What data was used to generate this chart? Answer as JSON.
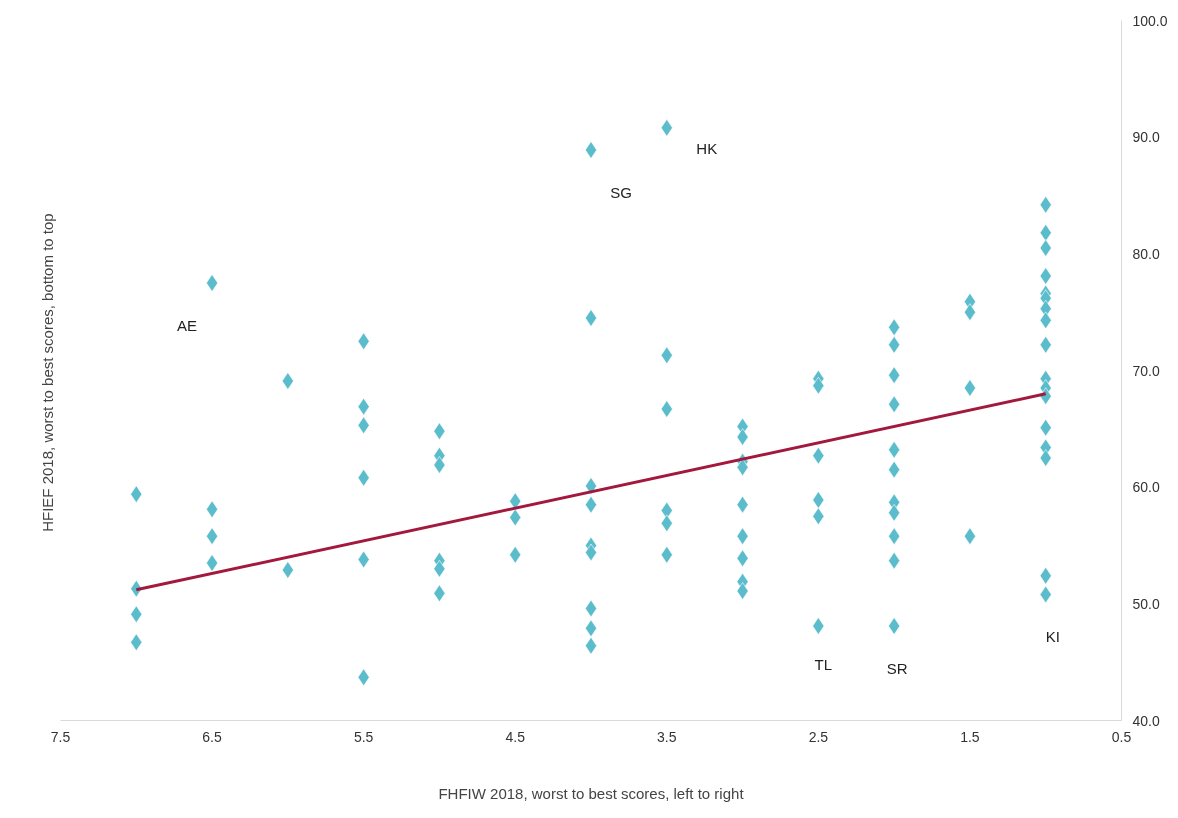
{
  "chart_data": {
    "type": "scatter",
    "xlabel": "FHFIW 2018, worst to best scores, left to right",
    "ylabel": "HFIEF 2018, worst to best scores, bottom  to top",
    "xlim": [
      7.5,
      0.5
    ],
    "xticks": [
      7.5,
      6.5,
      5.5,
      4.5,
      3.5,
      2.5,
      1.5,
      0.5
    ],
    "ylim": [
      40,
      100
    ],
    "yticks": [
      {
        "value": 40,
        "label": "40.0"
      },
      {
        "value": 50,
        "label": "50.0"
      },
      {
        "value": 60,
        "label": "60.0"
      },
      {
        "value": 70,
        "label": "70.0"
      },
      {
        "value": 80,
        "label": "80.0"
      },
      {
        "value": 90,
        "label": "90.0"
      },
      {
        "value": 100,
        "label": "100.0"
      }
    ],
    "grid": false,
    "series": [
      {
        "color": "#5bbccc",
        "marker": "diamond",
        "x": [
          7,
          7,
          7,
          7,
          6.5,
          6.5,
          6.5,
          6.5,
          6,
          6,
          5.5,
          5.5,
          5.5,
          5.5,
          5.5,
          5.5,
          5,
          5,
          5,
          5,
          5,
          5,
          4.5,
          4.5,
          4.5,
          4,
          4,
          4,
          4,
          4,
          4,
          4,
          4,
          4,
          3.5,
          3.5,
          3.5,
          3.5,
          3.5,
          3.5,
          3,
          3,
          3,
          3,
          3,
          3,
          3,
          3,
          3,
          2.5,
          2.5,
          2.5,
          2.5,
          2.5,
          2.5,
          2,
          2,
          2,
          2,
          2,
          2,
          2,
          2,
          2,
          2,
          2,
          1.5,
          1.5,
          1.5,
          1.5,
          1,
          1,
          1,
          1,
          1,
          1,
          1,
          1,
          1,
          1,
          1,
          1,
          1,
          1,
          1,
          1,
          1
        ],
        "values": [
          59.4,
          51.3,
          49.1,
          46.7,
          77.5,
          58.1,
          55.8,
          53.5,
          69.1,
          52.9,
          72.5,
          66.9,
          65.3,
          60.8,
          53.8,
          43.7,
          64.8,
          62.7,
          61.9,
          53.7,
          53.0,
          50.9,
          58.8,
          57.4,
          54.2,
          88.9,
          74.5,
          60.1,
          58.5,
          55.0,
          54.4,
          49.6,
          47.9,
          46.4,
          90.8,
          71.3,
          66.7,
          58.0,
          56.9,
          54.2,
          65.2,
          64.3,
          62.2,
          61.7,
          58.5,
          55.8,
          53.9,
          51.9,
          51.1,
          69.3,
          68.7,
          62.7,
          58.9,
          57.5,
          48.1,
          73.7,
          72.2,
          69.6,
          67.1,
          63.2,
          61.5,
          58.7,
          57.8,
          55.8,
          53.7,
          48.1,
          75.9,
          75.0,
          68.5,
          55.8,
          84.2,
          81.8,
          80.5,
          78.1,
          76.6,
          76.2,
          75.3,
          74.3,
          72.2,
          69.3,
          68.5,
          67.8,
          65.1,
          63.4,
          62.5,
          52.4,
          50.8
        ]
      },
      {
        "type": "line",
        "color": "#a3193d",
        "x": [
          7,
          1
        ],
        "values": [
          51.2,
          68.0
        ]
      }
    ],
    "annotations": [
      {
        "text": "AE",
        "x": 6.5,
        "y": 77.5
      },
      {
        "text": "SG",
        "x": 4,
        "y": 88.9
      },
      {
        "text": "HK",
        "x": 3.5,
        "y": 90.8
      },
      {
        "text": "TL",
        "x": 2.5,
        "y": 48.1
      },
      {
        "text": "SR",
        "x": 2,
        "y": 48.1
      },
      {
        "text": "KI",
        "x": 1,
        "y": 50.8
      }
    ]
  }
}
